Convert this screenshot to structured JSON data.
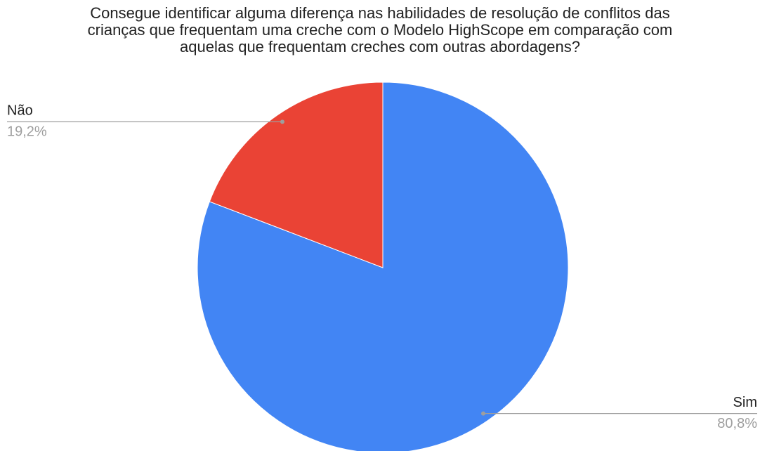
{
  "chart_data": {
    "type": "pie",
    "title": [
      "Consegue identificar alguma diferença nas habilidades de resolução de conflitos das",
      "crianças que frequentam uma creche com o Modelo HighScope em comparação com",
      "aquelas que frequentam creches com outras abordagens?"
    ],
    "categories": [
      "Sim",
      "Não"
    ],
    "values": [
      80.8,
      19.2
    ],
    "value_labels": [
      "80,8%",
      "19,2%"
    ],
    "colors": [
      "#4285f4",
      "#ea4335"
    ]
  }
}
